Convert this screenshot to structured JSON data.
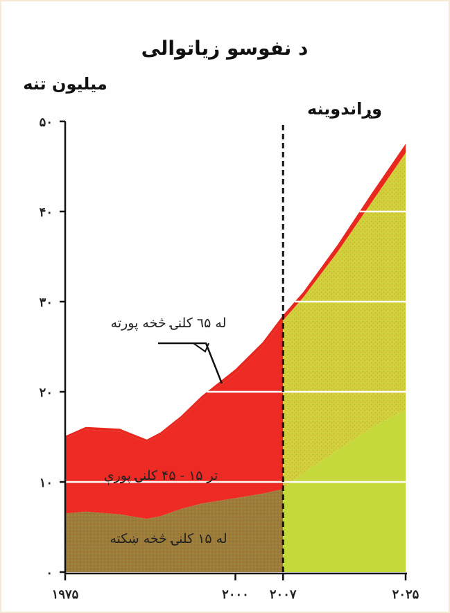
{
  "chart_data": {
    "type": "area",
    "title": "د نفوسو زياتوالی",
    "ylabel": "میلیون تنه",
    "xlabel": "",
    "ylim": [
      0,
      50
    ],
    "xlim": [
      1975,
      2025
    ],
    "yticks": [
      {
        "value": 0,
        "label": "٠"
      },
      {
        "value": 10,
        "label": "١٠"
      },
      {
        "value": 20,
        "label": "٢٠"
      },
      {
        "value": 30,
        "label": "٣٠"
      },
      {
        "value": 40,
        "label": "۴٠"
      },
      {
        "value": 50,
        "label": "۵٠"
      }
    ],
    "xticks": [
      {
        "value": 1975,
        "label": "١٩٧۵"
      },
      {
        "value": 2000,
        "label": "٢٠٠٠"
      },
      {
        "value": 2007,
        "label": "٢٠٠٧"
      },
      {
        "value": 2025,
        "label": "٢٠٢۵"
      }
    ],
    "x": [
      1975,
      1978,
      1983,
      1987,
      1989,
      1992,
      1995,
      2000,
      2004,
      2007,
      2010,
      2015,
      2020,
      2025
    ],
    "series": [
      {
        "name": "له ١۵ کلنۍ څخه ښکته",
        "values": [
          6.5,
          6.7,
          6.4,
          5.9,
          6.2,
          7.0,
          7.6,
          8.2,
          8.7,
          9.2,
          11.0,
          13.5,
          16.0,
          18.0
        ]
      },
      {
        "name": "تر ١۵ - ۴۵ کلنۍ پورې",
        "values": [
          8.3,
          9.1,
          9.2,
          8.5,
          9.0,
          10.0,
          11.5,
          13.8,
          16.3,
          18.7,
          19.5,
          22.0,
          25.0,
          28.5
        ]
      },
      {
        "name": "له ٦۵ کلنۍ څخه پورته",
        "values": [
          0.3,
          0.3,
          0.3,
          0.3,
          0.3,
          0.3,
          0.4,
          0.5,
          0.5,
          0.6,
          0.6,
          0.8,
          1.0,
          1.0
        ]
      }
    ],
    "forecast_from": 2007,
    "forecast_label": "وړاندوینه",
    "gridlines": [
      10,
      20,
      30,
      40
    ],
    "grid": true,
    "colors": {
      "under15": "#9c7f3a",
      "age15_45": "#ee2a25",
      "over65": "#e8281f",
      "forecast_fill": "#d4cf36",
      "forecast_base": "#c6d93a",
      "gridline": "#ffffff",
      "axis": "#111111"
    }
  }
}
